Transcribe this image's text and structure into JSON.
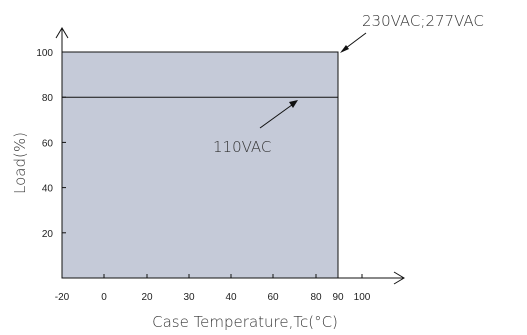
{
  "chart_data": {
    "type": "area",
    "xlabel": "Case Temperature,Tc(°C)",
    "ylabel": "Load(%)",
    "x_ticks": [
      "-20",
      "0",
      "20",
      "30",
      "40",
      "60",
      "80",
      "90",
      "100"
    ],
    "y_ticks": [
      "20",
      "40",
      "60",
      "80",
      "100"
    ],
    "ylim": [
      0,
      100
    ],
    "series": [
      {
        "name": "230VAC;277VAC",
        "x": [
          -20,
          90
        ],
        "y": [
          100,
          100
        ]
      },
      {
        "name": "110VAC",
        "x": [
          -20,
          90
        ],
        "y": [
          80,
          80
        ]
      }
    ],
    "annotations": [
      "230VAC;277VAC",
      "110VAC"
    ],
    "colors": {
      "fill": "#c5cad8",
      "line": "#111111"
    }
  }
}
